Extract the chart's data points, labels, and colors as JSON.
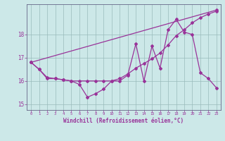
{
  "xlabel": "Windchill (Refroidissement éolien,°C)",
  "xlim": [
    -0.5,
    23.5
  ],
  "ylim": [
    14.75,
    19.3
  ],
  "yticks": [
    15,
    16,
    17,
    18
  ],
  "xticks": [
    0,
    1,
    2,
    3,
    4,
    5,
    6,
    7,
    8,
    9,
    10,
    11,
    12,
    13,
    14,
    15,
    16,
    17,
    18,
    19,
    20,
    21,
    22,
    23
  ],
  "bg_color": "#cce8e8",
  "line_color": "#993399",
  "grid_color": "#99bbbb",
  "line1_x": [
    0,
    1,
    2,
    3,
    4,
    5,
    6,
    7,
    8,
    9,
    10,
    11,
    12,
    13,
    14,
    15,
    16,
    17,
    18,
    19,
    20,
    21,
    22,
    23
  ],
  "line1_y": [
    16.8,
    16.5,
    16.1,
    16.1,
    16.05,
    16.0,
    15.85,
    15.3,
    15.45,
    15.65,
    16.0,
    16.0,
    16.25,
    17.6,
    16.0,
    17.5,
    16.55,
    18.2,
    18.65,
    18.1,
    18.0,
    16.35,
    16.1,
    15.7
  ],
  "line2_x": [
    0,
    1,
    2,
    3,
    4,
    5,
    6,
    7,
    8,
    9,
    10,
    11,
    12,
    13,
    14,
    15,
    16,
    17,
    18,
    19,
    20,
    21,
    22,
    23
  ],
  "line2_y": [
    16.8,
    16.5,
    16.15,
    16.1,
    16.05,
    16.0,
    16.0,
    16.0,
    16.0,
    16.0,
    16.0,
    16.1,
    16.3,
    16.55,
    16.75,
    16.95,
    17.2,
    17.55,
    17.95,
    18.2,
    18.5,
    18.72,
    18.88,
    19.0
  ],
  "line3_x": [
    0,
    23
  ],
  "line3_y": [
    16.8,
    19.05
  ]
}
